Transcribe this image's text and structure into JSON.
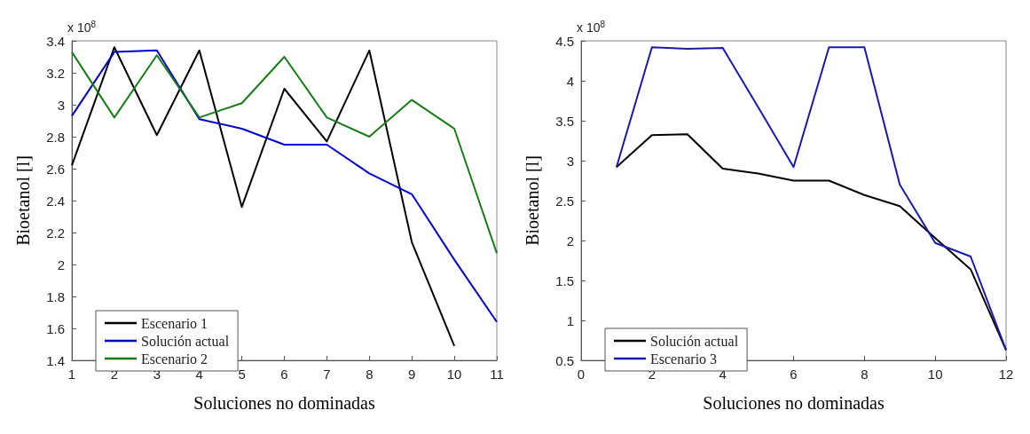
{
  "chart_data": [
    {
      "type": "line",
      "xlabel": "Soluciones no dominadas",
      "ylabel": "Bioetanol [l]",
      "annotations": [
        "x 10$^{8}$"
      ],
      "x": [
        1,
        2,
        3,
        4,
        5,
        6,
        7,
        8,
        9,
        10,
        11
      ],
      "xlim": [
        1,
        11
      ],
      "xticks": [
        1,
        2,
        3,
        4,
        5,
        6,
        7,
        8,
        9,
        10,
        11
      ],
      "ylim": [
        1.4,
        3.4
      ],
      "yticks": [
        1.4,
        1.6,
        1.8,
        2,
        2.2,
        2.4,
        2.6,
        2.8,
        3,
        3.2,
        3.4
      ],
      "grid": false,
      "legend": "bottom left",
      "marker": "none",
      "line_style": "solid",
      "series": [
        {
          "name": "Escenario 1",
          "color": "#000000",
          "values": [
            2.62,
            3.36,
            2.81,
            3.34,
            2.36,
            3.1,
            2.77,
            3.34,
            2.14,
            1.49,
            null
          ]
        },
        {
          "name": "Solución actual",
          "color": "#0000cc",
          "values": [
            2.93,
            3.33,
            3.34,
            2.91,
            2.85,
            2.75,
            2.75,
            2.57,
            2.44,
            2.03,
            1.64
          ]
        },
        {
          "name": "Escenario 2",
          "color": "#1a7a1a",
          "values": [
            3.33,
            2.92,
            3.31,
            2.92,
            3.01,
            3.3,
            2.92,
            2.8,
            3.03,
            2.85,
            2.07
          ]
        }
      ]
    },
    {
      "type": "line",
      "xlabel": "Soluciones no dominadas",
      "ylabel": "Bioetanol [l]",
      "annotations": [
        "x 10$^{8}$"
      ],
      "x": [
        1,
        2,
        3,
        4,
        5,
        6,
        7,
        8,
        9,
        10,
        11,
        12
      ],
      "xlim": [
        0,
        12
      ],
      "xticks": [
        0,
        2,
        4,
        6,
        8,
        10,
        12
      ],
      "ylim": [
        0.5,
        4.5
      ],
      "yticks": [
        0.5,
        1,
        1.5,
        2,
        2.5,
        3,
        3.5,
        4,
        4.5
      ],
      "grid": false,
      "legend": "bottom left",
      "marker": "none",
      "line_style": "solid",
      "series": [
        {
          "name": "Solución actual",
          "color": "#000000",
          "values": [
            2.92,
            3.32,
            3.33,
            2.9,
            2.84,
            2.75,
            2.75,
            2.57,
            2.43,
            2.03,
            1.64,
            0.63
          ]
        },
        {
          "name": "Escenario 3",
          "color": "#1a1aaa",
          "values": [
            2.92,
            4.42,
            4.4,
            4.41,
            3.67,
            2.92,
            4.42,
            4.42,
            2.7,
            1.97,
            1.8,
            0.63
          ]
        }
      ]
    }
  ]
}
